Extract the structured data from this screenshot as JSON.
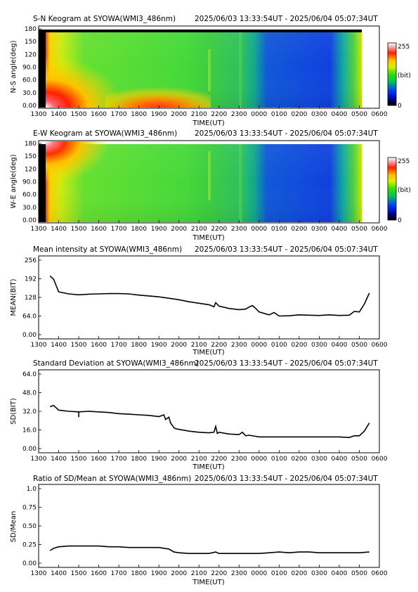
{
  "x_ticks": [
    "1300",
    "1400",
    "1500",
    "1600",
    "1700",
    "1800",
    "1900",
    "2000",
    "2100",
    "2200",
    "2300",
    "0000",
    "0100",
    "0200",
    "0300",
    "0400",
    "0500",
    "0600"
  ],
  "colorbar": {
    "max_label": "255",
    "unit_label": "(bit)",
    "min_label": "0"
  },
  "chart_data": [
    {
      "type": "heatmap",
      "title": "S-N Keogram at SYOWA(WMI3_486nm)",
      "time_range": "2025/06/03 13:33:54UT - 2025/06/04 05:07:34UT",
      "xlabel": "TIME(UT)",
      "ylabel": "N-S angle(deg)",
      "yticks": [
        "0.00",
        "30.0",
        "60.0",
        "90.0",
        "120",
        "150",
        "180"
      ],
      "ylim": [
        0,
        180
      ],
      "colorscale": {
        "min": 0,
        "max": 255,
        "unit": "(bit)"
      },
      "regions": [
        {
          "x": [
            1334,
            1400
          ],
          "level": "high",
          "note": "bright at 0-40 deg"
        },
        {
          "x": [
            1750,
            1935
          ],
          "level": "high",
          "note": "bright at 0-20 deg"
        },
        {
          "x": [
            1400,
            2300
          ],
          "level": "mid"
        },
        {
          "x": [
            2330,
            2500
          ],
          "level": "low"
        }
      ]
    },
    {
      "type": "heatmap",
      "title": "E-W Keogram at SYOWA(WMI3_486nm)",
      "time_range": "2025/06/03 13:33:54UT - 2025/06/04 05:07:34UT",
      "xlabel": "TIME(UT)",
      "ylabel": "W-E angle(deg)",
      "yticks": [
        "0.00",
        "30.0",
        "60.0",
        "90.0",
        "120",
        "150",
        "180"
      ],
      "ylim": [
        0,
        180
      ],
      "colorscale": {
        "min": 0,
        "max": 255,
        "unit": "(bit)"
      },
      "regions": [
        {
          "x": [
            1334,
            1450
          ],
          "level": "high",
          "note": "bright at 150-180 deg"
        },
        {
          "x": [
            1400,
            2300
          ],
          "level": "mid"
        },
        {
          "x": [
            2330,
            2500
          ],
          "level": "low"
        }
      ]
    },
    {
      "type": "line",
      "title": "Mean intensity at SYOWA(WMI3_486nm)",
      "time_range": "2025/06/03 13:33:54UT - 2025/06/04 05:07:34UT",
      "xlabel": "TIME(UT)",
      "ylabel": "MEAN(BIT)",
      "yticks": [
        "0.00",
        "64.0",
        "128",
        "192",
        "256"
      ],
      "ylim": [
        0,
        256
      ],
      "series": [
        {
          "x": [
            1334,
            1345,
            1400,
            1430,
            1500,
            1530,
            1600,
            1630,
            1700,
            1730,
            1800,
            1830,
            1900,
            1930,
            2000,
            2030,
            2100,
            2130,
            2145,
            2150,
            2200,
            2230,
            2300,
            2320,
            2330,
            2340,
            2350,
            2400,
            2430,
            2445,
            2500,
            2530,
            2600,
            2630,
            2700,
            2730,
            2800,
            2830,
            2845,
            2900,
            2915,
            2930
          ],
          "y": [
            202,
            190,
            147,
            140,
            137,
            139,
            140,
            141,
            141,
            140,
            136,
            133,
            130,
            125,
            120,
            113,
            108,
            103,
            96,
            110,
            98,
            90,
            86,
            88,
            95,
            100,
            90,
            78,
            68,
            76,
            64,
            65,
            68,
            67,
            66,
            68,
            66,
            67,
            80,
            78,
            105,
            143
          ]
        }
      ]
    },
    {
      "type": "line",
      "title": "Standard Deviation at SYOWA(WMI3_486nm)",
      "time_range": "2025/06/03 13:33:54UT - 2025/06/04 05:07:34UT",
      "xlabel": "TIME(UT)",
      "ylabel": "SD(BIT)",
      "yticks": [
        "0.00",
        "16.0",
        "32.0",
        "48.0",
        "64.0"
      ],
      "ylim": [
        0,
        64
      ],
      "series": [
        {
          "x": [
            1334,
            1345,
            1400,
            1430,
            1500,
            1500,
            1500,
            1530,
            1600,
            1630,
            1700,
            1730,
            1800,
            1830,
            1900,
            1915,
            1920,
            1930,
            1935,
            1945,
            1950,
            2000,
            2030,
            2100,
            2130,
            2145,
            2150,
            2155,
            2200,
            2230,
            2300,
            2310,
            2320,
            2330,
            2400,
            2430,
            2500,
            2530,
            2600,
            2630,
            2700,
            2730,
            2800,
            2830,
            2845,
            2900,
            2915,
            2930
          ],
          "y": [
            36,
            37,
            33,
            32,
            31.5,
            27,
            31.5,
            32,
            31.5,
            31,
            30,
            29.5,
            29,
            28.5,
            27.5,
            29,
            25,
            27,
            22,
            18,
            17,
            16.5,
            15,
            14,
            13.5,
            14,
            19,
            13,
            14,
            12.5,
            12,
            14,
            11,
            11.5,
            10,
            10,
            10,
            10,
            10,
            10,
            10,
            10,
            10,
            9.5,
            11,
            11,
            15,
            22
          ]
        }
      ]
    },
    {
      "type": "line",
      "title": "Ratio of SD/Mean at SYOWA(WMI3_486nm)",
      "time_range": "2025/06/03 13:33:54UT - 2025/06/04 05:07:34UT",
      "xlabel": "TIME(UT)",
      "ylabel": "SD/Mean",
      "yticks": [
        "0.00",
        "0.25",
        "0.50",
        "0.75",
        "1.0"
      ],
      "ylim": [
        0,
        1
      ],
      "series": [
        {
          "x": [
            1334,
            1345,
            1400,
            1430,
            1500,
            1530,
            1600,
            1630,
            1700,
            1730,
            1800,
            1830,
            1900,
            1915,
            1930,
            1945,
            2000,
            2030,
            2100,
            2130,
            2150,
            2200,
            2230,
            2300,
            2330,
            2400,
            2430,
            2500,
            2530,
            2600,
            2630,
            2700,
            2730,
            2800,
            2830,
            2900,
            2930
          ],
          "y": [
            0.17,
            0.2,
            0.22,
            0.23,
            0.23,
            0.23,
            0.23,
            0.22,
            0.22,
            0.21,
            0.21,
            0.21,
            0.21,
            0.2,
            0.19,
            0.15,
            0.14,
            0.13,
            0.13,
            0.13,
            0.15,
            0.13,
            0.13,
            0.13,
            0.13,
            0.13,
            0.14,
            0.15,
            0.14,
            0.15,
            0.15,
            0.14,
            0.14,
            0.14,
            0.14,
            0.14,
            0.15
          ]
        }
      ]
    }
  ]
}
